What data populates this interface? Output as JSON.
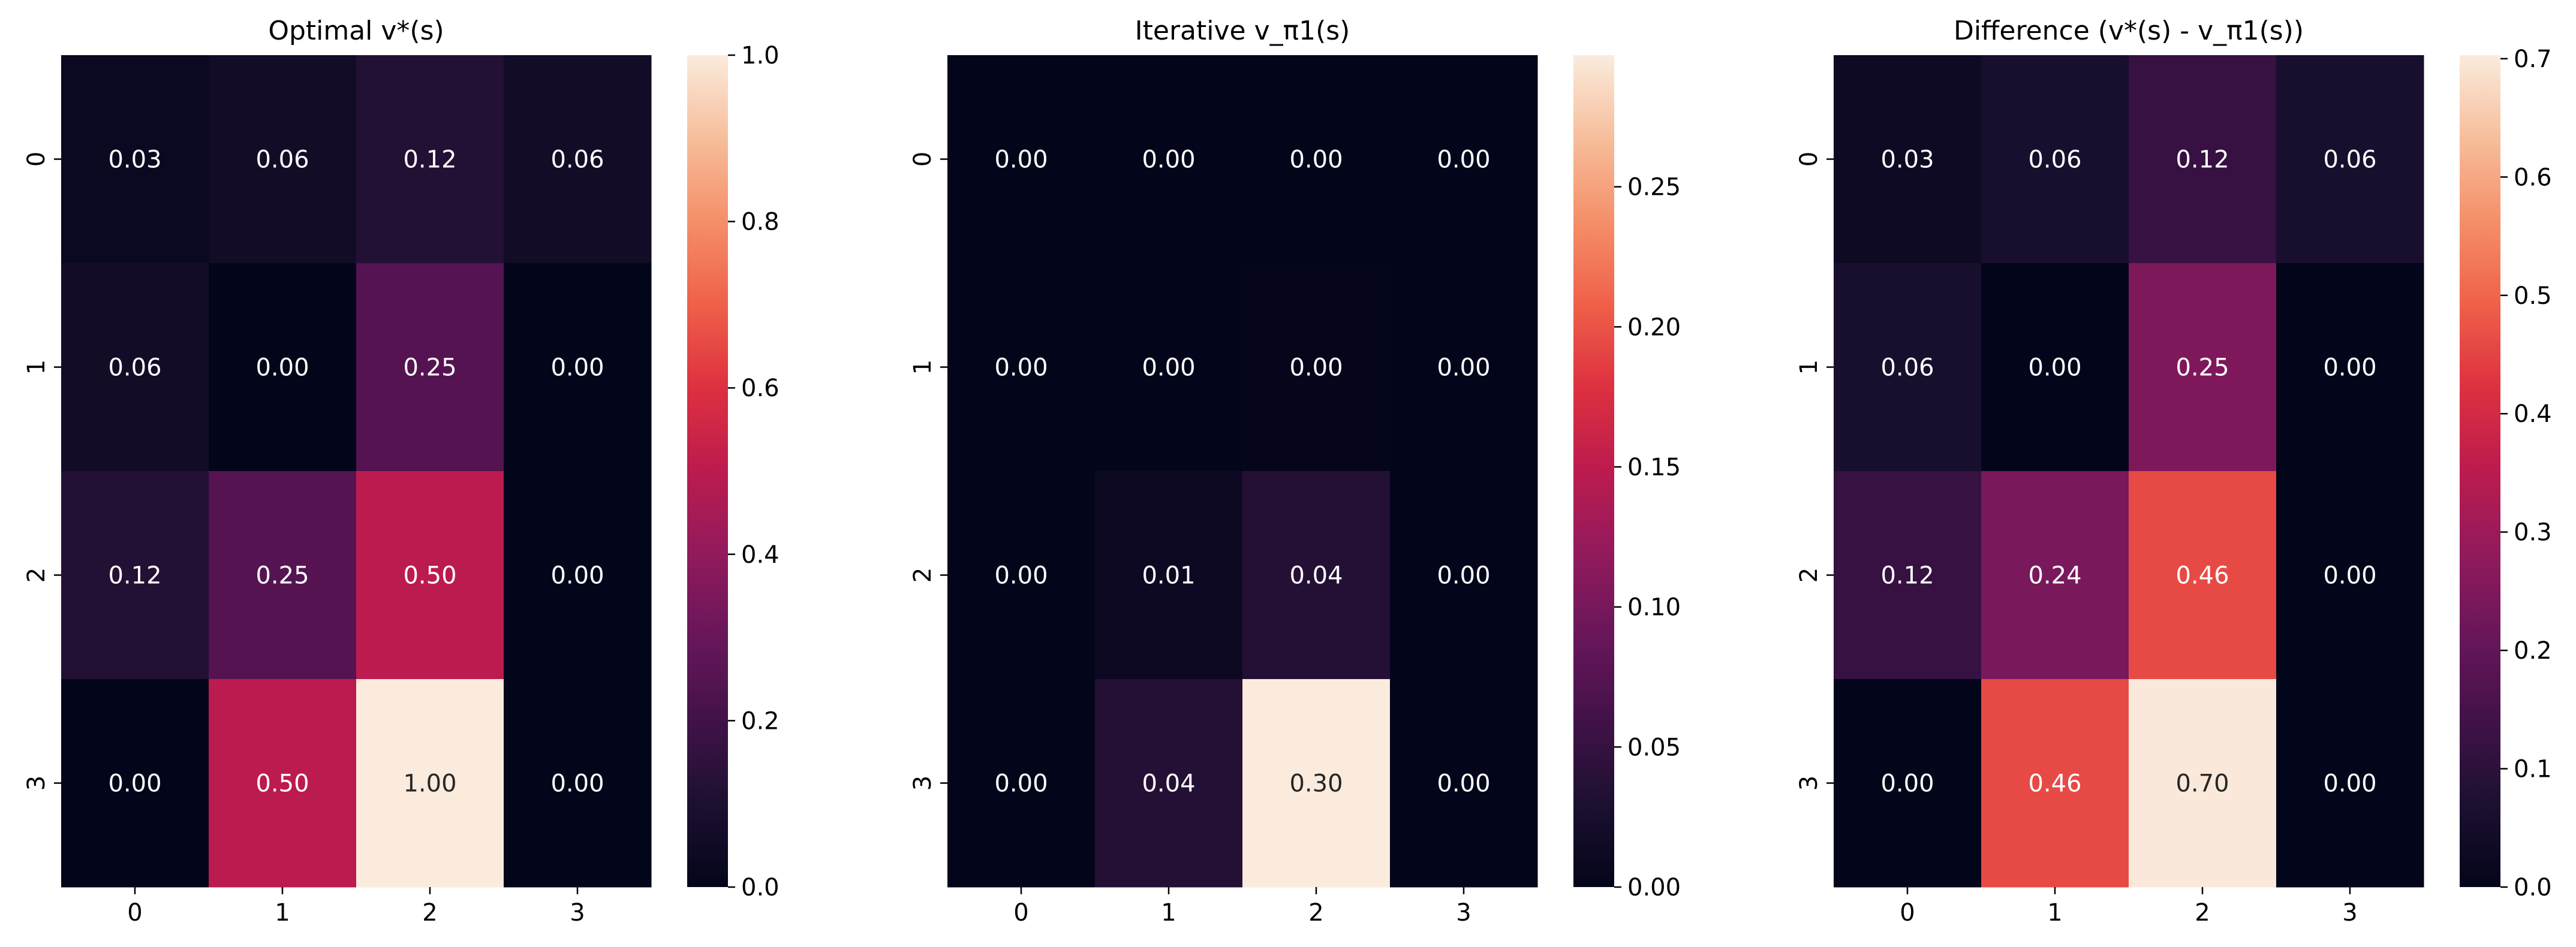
{
  "chart_data": [
    {
      "type": "heatmap",
      "title": "Optimal v*(s)",
      "x_categories": [
        "0",
        "1",
        "2",
        "3"
      ],
      "y_categories": [
        "0",
        "1",
        "2",
        "3"
      ],
      "values": [
        [
          0.03,
          0.06,
          0.12,
          0.06
        ],
        [
          0.06,
          0.0,
          0.25,
          0.0
        ],
        [
          0.12,
          0.25,
          0.5,
          0.0
        ],
        [
          0.0,
          0.5,
          1.0,
          0.0
        ]
      ],
      "annotations": [
        [
          "0.03",
          "0.06",
          "0.12",
          "0.06"
        ],
        [
          "0.06",
          "0.00",
          "0.25",
          "0.00"
        ],
        [
          "0.12",
          "0.25",
          "0.50",
          "0.00"
        ],
        [
          "0.00",
          "0.50",
          "1.00",
          "0.00"
        ]
      ],
      "colormap": "rocket",
      "colorbar": {
        "range": [
          0.0,
          1.0
        ],
        "ticks": [
          0.0,
          0.2,
          0.4,
          0.6,
          0.8,
          1.0
        ],
        "tick_labels": [
          "0.0",
          "0.2",
          "0.4",
          "0.6",
          "0.8",
          "1.0"
        ]
      }
    },
    {
      "type": "heatmap",
      "title": "Iterative v_π1(s)",
      "x_categories": [
        "0",
        "1",
        "2",
        "3"
      ],
      "y_categories": [
        "0",
        "1",
        "2",
        "3"
      ],
      "values": [
        [
          0.0,
          0.0,
          0.0,
          0.0
        ],
        [
          0.0,
          0.0,
          0.002,
          0.0
        ],
        [
          0.0,
          0.012,
          0.036,
          0.0
        ],
        [
          0.0,
          0.036,
          0.297,
          0.0
        ]
      ],
      "annotations": [
        [
          "0.00",
          "0.00",
          "0.00",
          "0.00"
        ],
        [
          "0.00",
          "0.00",
          "0.00",
          "0.00"
        ],
        [
          "0.00",
          "0.01",
          "0.04",
          "0.00"
        ],
        [
          "0.00",
          "0.04",
          "0.30",
          "0.00"
        ]
      ],
      "colormap": "rocket",
      "colorbar": {
        "range": [
          0.0,
          0.297
        ],
        "ticks": [
          0.0,
          0.05,
          0.1,
          0.15,
          0.2,
          0.25
        ],
        "tick_labels": [
          "0.00",
          "0.05",
          "0.10",
          "0.15",
          "0.20",
          "0.25"
        ]
      }
    },
    {
      "type": "heatmap",
      "title": "Difference (v*(s) - v_π1(s))",
      "x_categories": [
        "0",
        "1",
        "2",
        "3"
      ],
      "y_categories": [
        "0",
        "1",
        "2",
        "3"
      ],
      "values": [
        [
          0.03,
          0.06,
          0.12,
          0.06
        ],
        [
          0.06,
          0.0,
          0.25,
          0.0
        ],
        [
          0.12,
          0.24,
          0.46,
          0.0
        ],
        [
          0.0,
          0.46,
          0.7,
          0.0
        ]
      ],
      "annotations": [
        [
          "0.03",
          "0.06",
          "0.12",
          "0.06"
        ],
        [
          "0.06",
          "0.00",
          "0.25",
          "0.00"
        ],
        [
          "0.12",
          "0.24",
          "0.46",
          "0.00"
        ],
        [
          "0.00",
          "0.46",
          "0.70",
          "0.00"
        ]
      ],
      "colormap": "rocket",
      "colorbar": {
        "range": [
          0.0,
          0.703
        ],
        "ticks": [
          0.0,
          0.1,
          0.2,
          0.3,
          0.4,
          0.5,
          0.6,
          0.7
        ],
        "tick_labels": [
          "0.0",
          "0.1",
          "0.2",
          "0.3",
          "0.4",
          "0.5",
          "0.6",
          "0.7"
        ]
      }
    }
  ]
}
